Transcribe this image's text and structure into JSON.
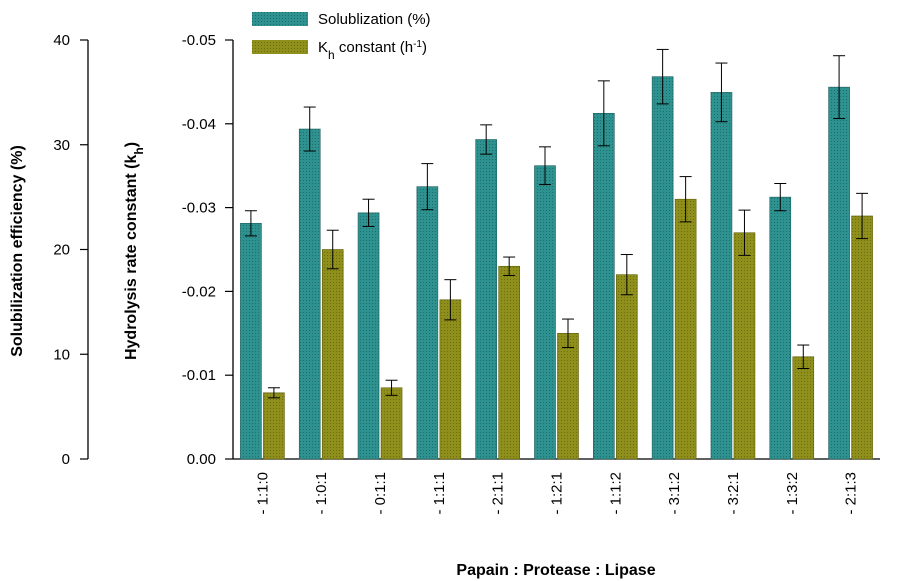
{
  "chart_data": {
    "type": "bar",
    "categories": [
      "1:1:0",
      "1:0:1",
      "0:1:1",
      "1:1:1",
      "2:1:1",
      "1:2:1",
      "1:1:2",
      "3:1:2",
      "3:2:1",
      "1:3:2",
      "2:1:3"
    ],
    "series": [
      {
        "name": "Solublization (%)",
        "axis": "left",
        "color": "#2a8a87",
        "values": [
          22.5,
          31.5,
          23.5,
          26,
          30.5,
          28,
          33,
          36.5,
          35,
          25,
          35.5
        ],
        "errors": [
          1.2,
          2.1,
          1.3,
          2.2,
          1.4,
          1.8,
          3.1,
          2.6,
          2.8,
          1.3,
          3.0
        ]
      },
      {
        "name_main": "K",
        "name_sub": "h",
        "name_rest": " constant (h",
        "name_sup": "-1",
        "name_end": ")",
        "axis": "right",
        "color": "#8a8a18",
        "values": [
          -0.0079,
          -0.025,
          -0.0085,
          -0.019,
          -0.023,
          -0.015,
          -0.022,
          -0.031,
          -0.027,
          -0.0122,
          -0.029
        ],
        "errors": [
          0.0006,
          0.0023,
          0.0009,
          0.0024,
          0.0011,
          0.0017,
          0.0024,
          0.0027,
          0.0027,
          0.0014,
          0.0027
        ]
      }
    ],
    "y_left": {
      "label": "Solubilization efficiency (%)",
      "lim": [
        0,
        40
      ],
      "ticks": [
        "0",
        "10",
        "20",
        "30",
        "40"
      ]
    },
    "y_right": {
      "label_main": "Hydrolysis rate constant (k",
      "label_sub": "h",
      "label_end": ")",
      "lim": [
        0,
        -0.05
      ],
      "ticks": [
        "0.00",
        "-0.01",
        "-0.02",
        "-0.03",
        "-0.04",
        "-0.05"
      ]
    },
    "xlabel": "Papain : Protease : Lipase",
    "legend": "top-left",
    "grid": false
  }
}
